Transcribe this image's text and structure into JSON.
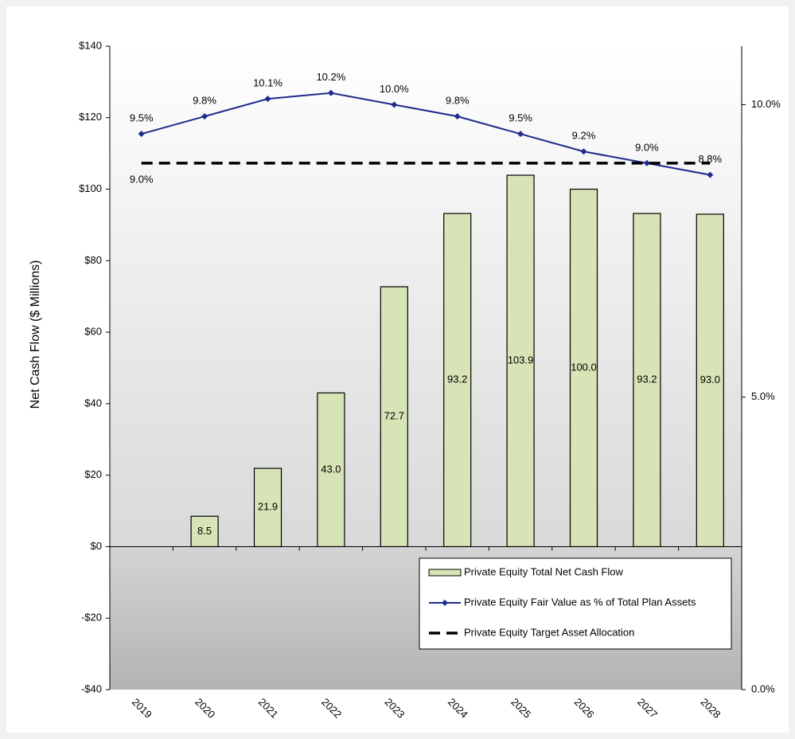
{
  "chart_data": {
    "type": "bar-line",
    "ylabel": "Net Cash Flow ($ Millions)",
    "categories": [
      "2019",
      "2020",
      "2021",
      "2022",
      "2023",
      "2024",
      "2025",
      "2026",
      "2027",
      "2028"
    ],
    "ylim": [
      -40,
      140
    ],
    "yticks": [
      {
        "value": -40,
        "label": "-$40"
      },
      {
        "value": -20,
        "label": "-$20"
      },
      {
        "value": 0,
        "label": "$0"
      },
      {
        "value": 20,
        "label": "$20"
      },
      {
        "value": 40,
        "label": "$40"
      },
      {
        "value": 60,
        "label": "$60"
      },
      {
        "value": 80,
        "label": "$80"
      },
      {
        "value": 100,
        "label": "$100"
      },
      {
        "value": 120,
        "label": "$120"
      },
      {
        "value": 140,
        "label": "$140"
      }
    ],
    "y2lim": [
      0,
      11
    ],
    "y2ticks": [
      {
        "value": 0,
        "label": "0.0%"
      },
      {
        "value": 5,
        "label": "5.0%"
      },
      {
        "value": 10,
        "label": "10.0%"
      }
    ],
    "series": [
      {
        "name": "Private Equity Total Net Cash Flow",
        "kind": "bar",
        "color": "#d7e4b6",
        "values": [
          null,
          8.5,
          21.9,
          43.0,
          72.7,
          93.2,
          103.9,
          100.0,
          93.2,
          93.0
        ],
        "value_labels": [
          null,
          "8.5",
          "21.9",
          "43.0",
          "72.7",
          "93.2",
          "103.9",
          "100.0",
          "93.2",
          "93.0"
        ]
      },
      {
        "name": "Private Equity Fair Value as % of Total Plan Assets",
        "kind": "line",
        "axis": "y2",
        "color": "#1f2a8c",
        "values": [
          9.5,
          9.8,
          10.1,
          10.2,
          10.0,
          9.8,
          9.5,
          9.2,
          9.0,
          8.8
        ],
        "value_labels": [
          "9.5%",
          "9.8%",
          "10.1%",
          "10.2%",
          "10.0%",
          "9.8%",
          "9.5%",
          "9.2%",
          "9.0%",
          "8.8%"
        ]
      },
      {
        "name": "Private Equity Target Asset Allocation",
        "kind": "dashed",
        "axis": "y2",
        "color": "#000000",
        "values": [
          9.0,
          9.0,
          9.0,
          9.0,
          9.0,
          9.0,
          9.0,
          9.0,
          9.0,
          9.0
        ],
        "value_labels": [
          "9.0%",
          null,
          null,
          null,
          null,
          null,
          null,
          null,
          null,
          null
        ]
      }
    ]
  }
}
